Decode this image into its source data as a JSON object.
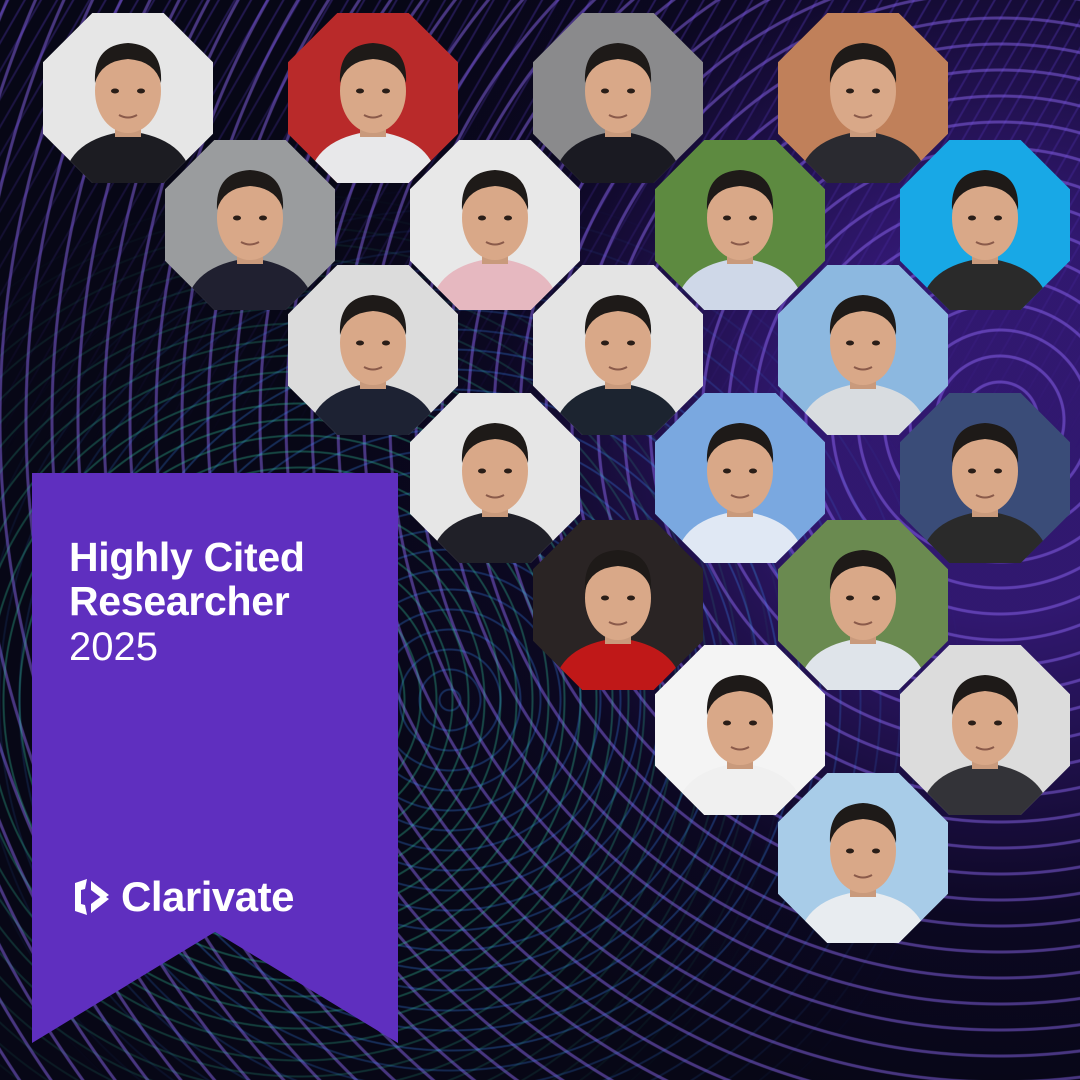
{
  "badge": {
    "title_line1": "Highly Cited",
    "title_line2": "Researcher",
    "year": "2025",
    "brand": "Clarivate",
    "color": "#5f2fbf"
  },
  "portraits": [
    {
      "bg": "#e6e6e6",
      "shirt": "#1c1c22"
    },
    {
      "bg": "#b92a2a",
      "shirt": "#e8e8ea"
    },
    {
      "bg": "#8a8a8c",
      "shirt": "#1a1a22"
    },
    {
      "bg": "#c0805a",
      "shirt": "#2a2a30"
    },
    {
      "bg": "#9a9c9e",
      "shirt": "#202030"
    },
    {
      "bg": "#e8e8e8",
      "shirt": "#e6b8c0"
    },
    {
      "bg": "#5d8a40",
      "shirt": "#cfd8e8"
    },
    {
      "bg": "#18a8e6",
      "shirt": "#2a2a2a"
    },
    {
      "bg": "#dcdcdc",
      "shirt": "#1d2233"
    },
    {
      "bg": "#e4e4e4",
      "shirt": "#1c2430"
    },
    {
      "bg": "#8cb8e0",
      "shirt": "#d8dce0"
    },
    {
      "bg": "#e6e6e6",
      "shirt": "#202028"
    },
    {
      "bg": "#7aa8e0",
      "shirt": "#e0e8f4"
    },
    {
      "bg": "#3a4c78",
      "shirt": "#2a2a2a"
    },
    {
      "bg": "#2a2424",
      "shirt": "#c01818"
    },
    {
      "bg": "#6a8a50",
      "shirt": "#dfe4ea"
    },
    {
      "bg": "#f4f4f4",
      "shirt": "#f0f0f0"
    },
    {
      "bg": "#dcdcdc",
      "shirt": "#333338"
    },
    {
      "bg": "#a8cce8",
      "shirt": "#e8ecf0"
    }
  ]
}
